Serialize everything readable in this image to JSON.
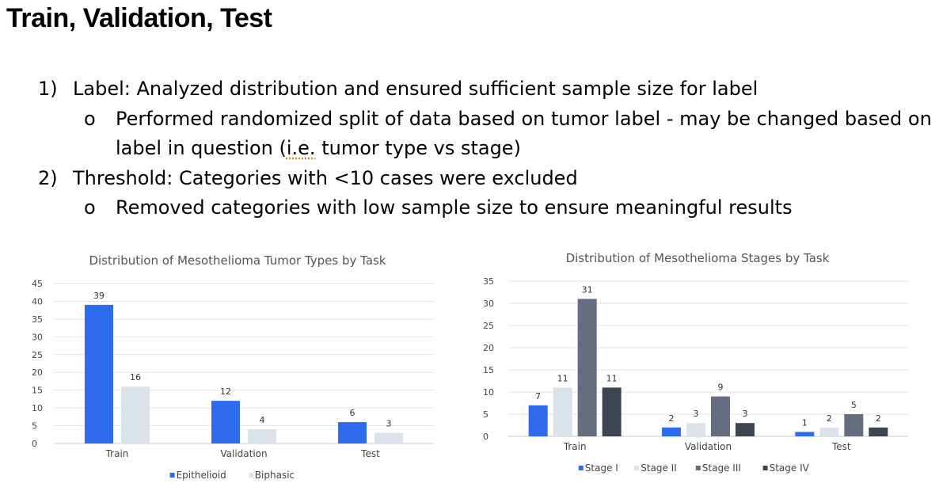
{
  "title": "Train, Validation, Test",
  "bullets": [
    {
      "num": "1)",
      "text": "Label: Analyzed distribution and ensured sufficient sample size for label",
      "sub": [
        {
          "marker": "o",
          "text_before": "Performed randomized split of data based on tumor label - may be changed based on label in question (",
          "text_underlined": "i.e.",
          "text_after": " tumor type vs stage)"
        }
      ]
    },
    {
      "num": "2)",
      "text": "Threshold: Categories with <10 cases were excluded",
      "sub": [
        {
          "marker": "o",
          "text_before": "Removed categories with low sample size to ensure meaningful results",
          "text_underlined": "",
          "text_after": ""
        }
      ]
    }
  ],
  "chart_data": [
    {
      "type": "bar",
      "title": "Distribution of Mesothelioma Tumor Types by Task",
      "categories": [
        "Train",
        "Validation",
        "Test"
      ],
      "series": [
        {
          "name": "Epithelioid",
          "values": [
            39,
            12,
            6
          ],
          "color": "#2f6bed"
        },
        {
          "name": "Biphasic",
          "values": [
            16,
            4,
            3
          ],
          "color": "#dbe2ec"
        }
      ],
      "ylim": [
        0,
        45
      ],
      "yticks": [
        0,
        5,
        10,
        15,
        20,
        25,
        30,
        35,
        40,
        45
      ],
      "grid": true,
      "legend": "bottom",
      "data_labels": true
    },
    {
      "type": "bar",
      "title": "Distribution of Mesothelioma Stages by Task",
      "categories": [
        "Train",
        "Validation",
        "Test"
      ],
      "series": [
        {
          "name": "Stage I",
          "values": [
            7,
            2,
            1
          ],
          "color": "#2f6bed"
        },
        {
          "name": "Stage II",
          "values": [
            11,
            3,
            2
          ],
          "color": "#dbe2ec"
        },
        {
          "name": "Stage III",
          "values": [
            31,
            9,
            5
          ],
          "color": "#646e80"
        },
        {
          "name": "Stage IV",
          "values": [
            11,
            3,
            2
          ],
          "color": "#3e4552"
        }
      ],
      "ylim": [
        0,
        35
      ],
      "yticks": [
        0,
        5,
        10,
        15,
        20,
        25,
        30,
        35
      ],
      "grid": true,
      "legend": "bottom",
      "data_labels": true
    }
  ]
}
